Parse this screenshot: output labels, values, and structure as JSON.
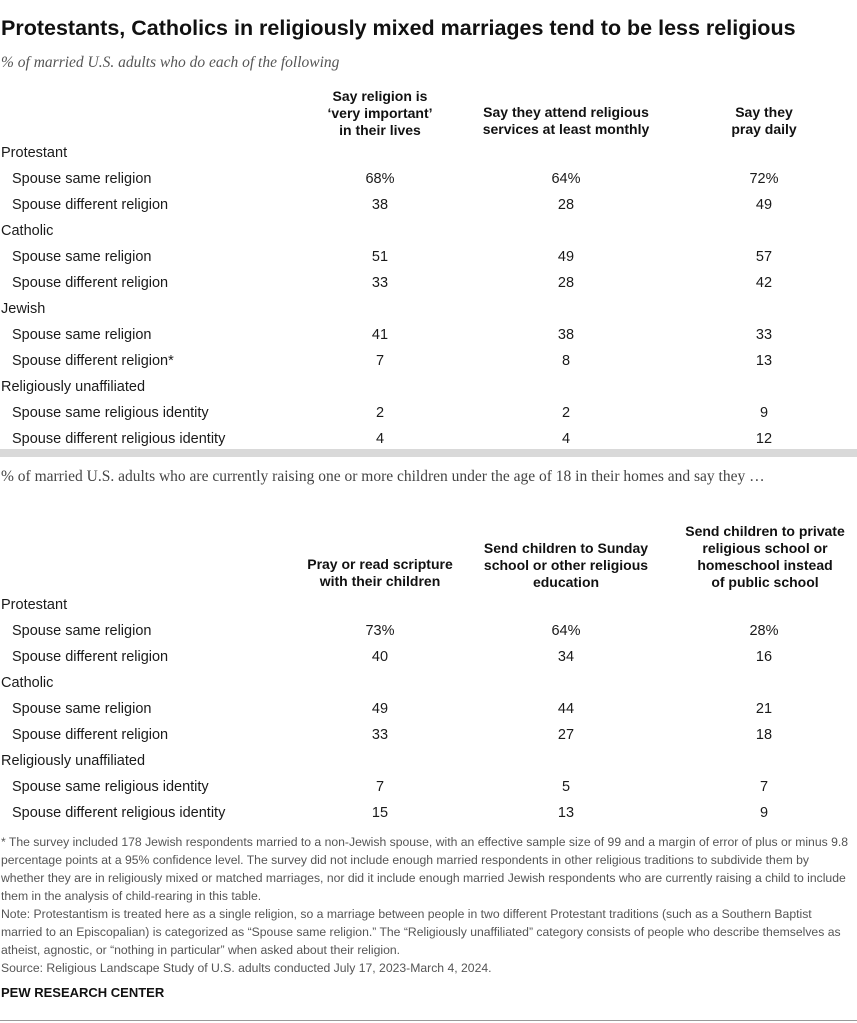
{
  "title": "Protestants, Catholics in religiously mixed marriages tend to be less religious",
  "subtitle": "% of married U.S. adults who do each of the following",
  "table1": {
    "headers": [
      "Say religion is\n‘very important’\nin their lives",
      "Say they attend religious\nservices at least monthly",
      "Say they\npray daily"
    ],
    "rows": [
      {
        "label": "Protestant",
        "group": true
      },
      {
        "label": "Spouse same religion",
        "values": [
          "68%",
          "64%",
          "72%"
        ]
      },
      {
        "label": "Spouse different religion",
        "values": [
          "38",
          "28",
          "49"
        ]
      },
      {
        "label": "Catholic",
        "group": true
      },
      {
        "label": "Spouse same religion",
        "values": [
          "51",
          "49",
          "57"
        ]
      },
      {
        "label": "Spouse different religion",
        "values": [
          "33",
          "28",
          "42"
        ]
      },
      {
        "label": "Jewish",
        "group": true
      },
      {
        "label": "Spouse same religion",
        "values": [
          "41",
          "38",
          "33"
        ]
      },
      {
        "label": "Spouse different religion*",
        "values": [
          "7",
          "8",
          "13"
        ]
      },
      {
        "label": "Religiously unaffiliated",
        "group": true
      },
      {
        "label": "Spouse same religious identity",
        "values": [
          "2",
          "2",
          "9"
        ]
      },
      {
        "label": "Spouse different religious identity",
        "values": [
          "4",
          "4",
          "12"
        ]
      }
    ]
  },
  "intro2": "% of married U.S. adults who are currently raising one or more children under the age of 18 in their homes and say they …",
  "table2": {
    "headers": [
      "Pray or read scripture\nwith their children",
      "Send children to Sunday\nschool or other religious\neducation",
      "Send children to private\nreligious school or\nhomeschool instead\nof public school"
    ],
    "rows": [
      {
        "label": "Protestant",
        "group": true
      },
      {
        "label": "Spouse same religion",
        "values": [
          "73%",
          "64%",
          "28%"
        ]
      },
      {
        "label": "Spouse different religion",
        "values": [
          "40",
          "34",
          "16"
        ]
      },
      {
        "label": "Catholic",
        "group": true
      },
      {
        "label": "Spouse same religion",
        "values": [
          "49",
          "44",
          "21"
        ]
      },
      {
        "label": "Spouse different religion",
        "values": [
          "33",
          "27",
          "18"
        ]
      },
      {
        "label": "Religiously unaffiliated",
        "group": true
      },
      {
        "label": "Spouse same religious identity",
        "values": [
          "7",
          "5",
          "7"
        ]
      },
      {
        "label": "Spouse different religious identity",
        "values": [
          "15",
          "13",
          "9"
        ]
      }
    ]
  },
  "footnotes": {
    "asterisk": "* The survey included 178 Jewish respondents married to a non-Jewish spouse, with an effective sample size of 99 and a margin of error of plus or minus 9.8 percentage points at a 95% confidence level. The survey did not include enough married respondents in other religious traditions to subdivide them by whether they are in religiously mixed or matched marriages, nor did it include enough married Jewish respondents who are currently raising a child to include them in the analysis of child-rearing in this table.",
    "note": "Note: Protestantism is treated here as a single religion, so a marriage between people in two different Protestant traditions (such as a Southern Baptist married to an Episcopalian) is categorized as “Spouse same religion.” The “Religiously unaffiliated” category consists of people who describe themselves as atheist, agnostic, or “nothing in particular” when asked about their religion.",
    "source": "Source: Religious Landscape Study of U.S. adults conducted July 17, 2023-March 4, 2024."
  },
  "brand": "PEW RESEARCH CENTER"
}
